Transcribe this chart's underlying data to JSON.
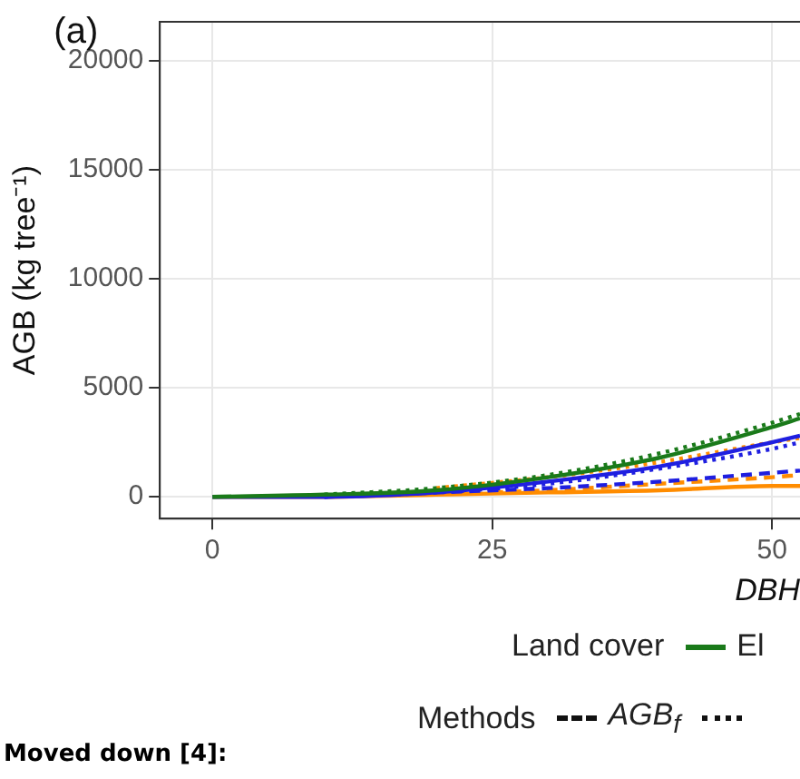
{
  "chart_data": {
    "type": "line",
    "title": "(a)",
    "xlabel": "DBH",
    "ylabel": "AGB (kg tree⁻¹)",
    "x": [
      0,
      10,
      20,
      30,
      40,
      50,
      52.5
    ],
    "xlim": [
      -4.7,
      52.5
    ],
    "xticks": [
      0,
      25,
      50
    ],
    "ylim": [
      -1000,
      21800
    ],
    "yticks": [
      0,
      5000,
      10000,
      15000,
      20000
    ],
    "grid": true,
    "legend": "bottom",
    "marker": "none",
    "series": [
      {
        "name": "El",
        "color": "#1a7a1a",
        "line_style": "solid",
        "values": [
          0,
          100,
          300,
          900,
          1800,
          3200,
          3600
        ]
      },
      {
        "color": "#1a7a1a",
        "line_style": "dotted",
        "x": [
          10,
          20,
          30,
          40,
          50,
          52.5
        ],
        "values": [
          100,
          400,
          1000,
          2000,
          3400,
          3800
        ]
      },
      {
        "color": "#1f1fe0",
        "line_style": "solid",
        "values": [
          0,
          0,
          200,
          700,
          1400,
          2500,
          2800
        ]
      },
      {
        "color": "#1f1fe0",
        "line_style": "dotted",
        "x": [
          10,
          20,
          30,
          40,
          50,
          52.5
        ],
        "values": [
          0,
          200,
          600,
          1300,
          2200,
          2500
        ]
      },
      {
        "color": "#1f1fe0",
        "line_style": "dashed",
        "x": [
          10,
          20,
          30,
          40,
          50,
          52.5
        ],
        "values": [
          0,
          200,
          400,
          700,
          1100,
          1200
        ]
      },
      {
        "color": "#ff8c00",
        "line_style": "dotted",
        "x": [
          20,
          30,
          40,
          50,
          52.5
        ],
        "values": [
          400,
          900,
          1600,
          2500,
          2700
        ]
      },
      {
        "color": "#ff8c00",
        "line_style": "dashed",
        "x": [
          25,
          30,
          40,
          50,
          52.5
        ],
        "values": [
          200,
          300,
          600,
          900,
          1000
        ]
      },
      {
        "color": "#ff8c00",
        "line_style": "solid",
        "values": [
          0,
          0,
          100,
          200,
          300,
          500,
          500
        ]
      }
    ],
    "annotations": [
      "Land cover",
      "Methods",
      "AGB$_{f}$",
      "Moved down [4]:"
    ]
  }
}
